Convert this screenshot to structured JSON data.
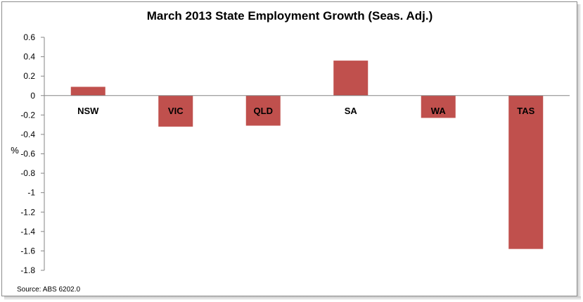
{
  "chart_data": {
    "type": "bar",
    "title": "March 2013 State Employment Growth (Seas. Adj.)",
    "ylabel": "%",
    "xlabel": "",
    "categories": [
      "NSW",
      "VIC",
      "QLD",
      "SA",
      "WA",
      "TAS"
    ],
    "values": [
      0.09,
      -0.32,
      -0.31,
      0.36,
      -0.23,
      -1.58
    ],
    "ylim": [
      -1.8,
      0.6
    ],
    "yticks": [
      "0.6",
      "0.4",
      "0.2",
      "0",
      "-0.2",
      "-0.4",
      "-0.6",
      "-0.8",
      "-1",
      "-1.2",
      "-1.4",
      "-1.6",
      "-1.8"
    ],
    "ytick_values": [
      0.6,
      0.4,
      0.2,
      0,
      -0.2,
      -0.4,
      -0.6,
      -0.8,
      -1,
      -1.2,
      -1.4,
      -1.6,
      -1.8
    ],
    "bar_color": "#c0504d",
    "grid": false,
    "legend": "none",
    "source": "Source: ABS 6202.0"
  }
}
